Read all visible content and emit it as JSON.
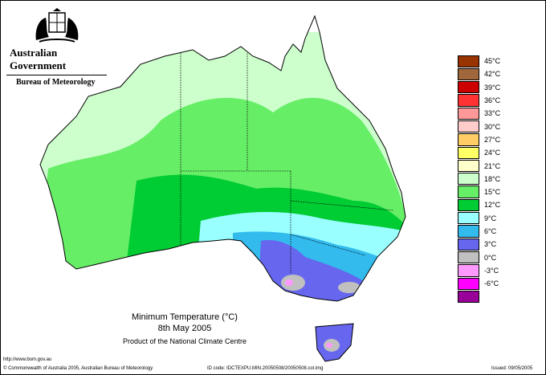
{
  "header": {
    "government": "Australian Government",
    "bureau": "Bureau of Meteorology"
  },
  "map": {
    "title": "Minimum Temperature (°C)",
    "date": "8th May 2005",
    "product": "Product of the National Climate Centre"
  },
  "legend": [
    {
      "label": "45°C",
      "color": "#993300"
    },
    {
      "label": "42°C",
      "color": "#a0663c"
    },
    {
      "label": "39°C",
      "color": "#cc0000"
    },
    {
      "label": "36°C",
      "color": "#ff3333"
    },
    {
      "label": "33°C",
      "color": "#ff9999"
    },
    {
      "label": "30°C",
      "color": "#ffcccc"
    },
    {
      "label": "27°C",
      "color": "#ffcc66"
    },
    {
      "label": "24°C",
      "color": "#ffff66"
    },
    {
      "label": "21°C",
      "color": "#ffffcc"
    },
    {
      "label": "18°C",
      "color": "#ccffcc"
    },
    {
      "label": "15°C",
      "color": "#66ee66"
    },
    {
      "label": "12°C",
      "color": "#00cc33"
    },
    {
      "label": "9°C",
      "color": "#99ffff"
    },
    {
      "label": "6°C",
      "color": "#33bbee"
    },
    {
      "label": "3°C",
      "color": "#6666ee"
    },
    {
      "label": "0°C",
      "color": "#c0c0c0"
    },
    {
      "label": "-3°C",
      "color": "#ff99ff"
    },
    {
      "label": "-6°C",
      "color": "#ff00ff"
    },
    {
      "label": "",
      "color": "#990099"
    }
  ],
  "footer": {
    "url": "http://www.bom.gov.au",
    "copyright": "© Commonwealth of Australia 2005, Australian Bureau of Meteorology",
    "id_code": "ID code: IDCTEXPU.MIN.20050508/20050508.col.img",
    "issued": "Issued: 09/05/2005"
  }
}
